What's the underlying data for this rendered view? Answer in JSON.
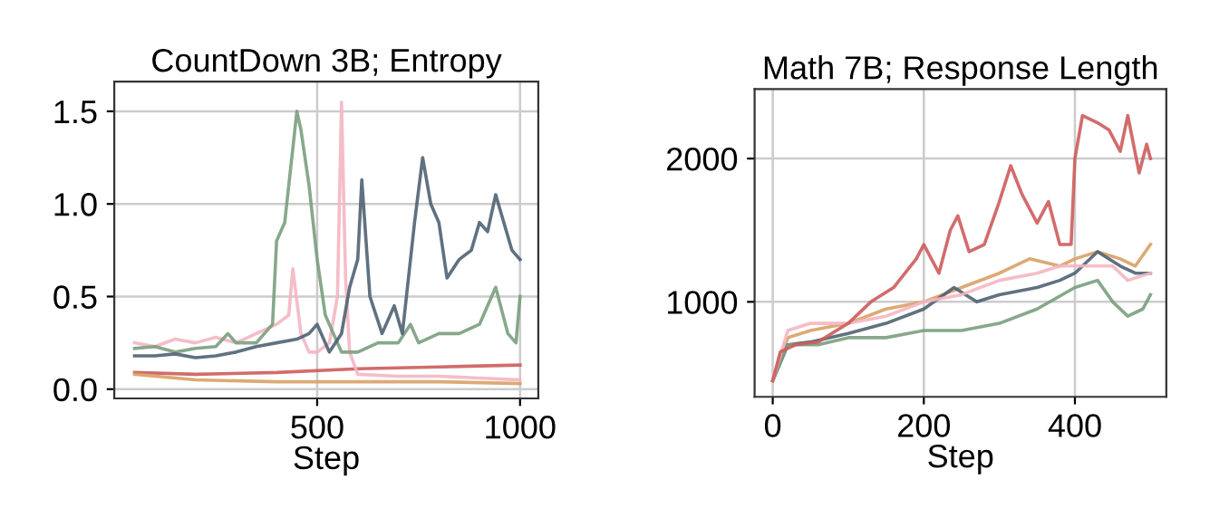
{
  "chart_data": [
    {
      "type": "line",
      "title": "CountDown 3B; Entropy",
      "xlabel": "Step",
      "xlim": [
        0,
        1045
      ],
      "xticks": [
        500,
        1000
      ],
      "ylim": [
        -0.05,
        1.66
      ],
      "yticks": [
        {
          "value": 0,
          "label": "0.0"
        },
        0.5,
        {
          "value": 1,
          "label": "1.0"
        },
        1.5
      ],
      "grid": true,
      "legend": false,
      "series": [
        {
          "color": "#cd5c5c",
          "x": [
            50,
            200,
            400,
            600,
            800,
            1000
          ],
          "values": [
            0.09,
            0.08,
            0.09,
            0.11,
            0.12,
            0.13
          ]
        },
        {
          "color": "#d9a066",
          "x": [
            50,
            200,
            400,
            600,
            800,
            1000
          ],
          "values": [
            0.08,
            0.05,
            0.04,
            0.04,
            0.04,
            0.03
          ]
        },
        {
          "color": "#f4b6c2",
          "x": [
            50,
            100,
            150,
            200,
            250,
            300,
            350,
            400,
            430,
            440,
            460,
            480,
            500,
            530,
            550,
            560,
            570,
            580,
            600,
            700,
            800,
            900,
            1000
          ],
          "values": [
            0.25,
            0.23,
            0.27,
            0.25,
            0.28,
            0.25,
            0.3,
            0.35,
            0.4,
            0.65,
            0.3,
            0.2,
            0.2,
            0.25,
            0.5,
            1.55,
            0.6,
            0.2,
            0.08,
            0.07,
            0.07,
            0.06,
            0.05
          ]
        },
        {
          "color": "#7a9e7e",
          "x": [
            50,
            100,
            150,
            200,
            250,
            280,
            300,
            350,
            390,
            400,
            420,
            440,
            450,
            460,
            480,
            500,
            520,
            540,
            560,
            580,
            600,
            650,
            700,
            730,
            750,
            800,
            850,
            900,
            940,
            970,
            990,
            1000
          ],
          "values": [
            0.22,
            0.23,
            0.2,
            0.22,
            0.23,
            0.3,
            0.25,
            0.25,
            0.35,
            0.8,
            0.9,
            1.3,
            1.5,
            1.4,
            1.1,
            0.7,
            0.4,
            0.3,
            0.2,
            0.2,
            0.2,
            0.25,
            0.25,
            0.35,
            0.25,
            0.3,
            0.3,
            0.35,
            0.55,
            0.3,
            0.25,
            0.5
          ]
        },
        {
          "color": "#4f6272",
          "x": [
            50,
            100,
            150,
            200,
            250,
            300,
            350,
            400,
            450,
            480,
            500,
            530,
            560,
            580,
            600,
            610,
            630,
            660,
            690,
            710,
            740,
            760,
            780,
            800,
            820,
            850,
            880,
            900,
            920,
            940,
            960,
            980,
            1000
          ],
          "values": [
            0.18,
            0.18,
            0.19,
            0.17,
            0.18,
            0.2,
            0.23,
            0.25,
            0.27,
            0.3,
            0.35,
            0.2,
            0.3,
            0.55,
            0.7,
            1.13,
            0.5,
            0.3,
            0.45,
            0.3,
            0.9,
            1.25,
            1.0,
            0.9,
            0.6,
            0.7,
            0.75,
            0.9,
            0.85,
            1.05,
            0.9,
            0.75,
            0.7
          ]
        }
      ]
    },
    {
      "type": "line",
      "title": "Math 7B; Response Length",
      "xlabel": "Step",
      "xlim": [
        -24,
        521
      ],
      "xticks": [
        0,
        200,
        400
      ],
      "ylim": [
        337,
        2485
      ],
      "yticks": [
        1000,
        2000
      ],
      "grid": true,
      "legend": false,
      "series": [
        {
          "color": "#d9a066",
          "x": [
            0,
            20,
            50,
            100,
            150,
            200,
            250,
            300,
            340,
            380,
            400,
            430,
            460,
            480,
            500
          ],
          "values": [
            450,
            750,
            800,
            850,
            950,
            1000,
            1100,
            1200,
            1300,
            1250,
            1300,
            1350,
            1300,
            1250,
            1400
          ]
        },
        {
          "color": "#4f6272",
          "x": [
            0,
            20,
            50,
            100,
            150,
            200,
            240,
            270,
            300,
            350,
            380,
            400,
            430,
            460,
            480,
            500
          ],
          "values": [
            450,
            700,
            720,
            780,
            850,
            950,
            1100,
            1000,
            1050,
            1100,
            1150,
            1200,
            1350,
            1250,
            1200,
            1200
          ]
        },
        {
          "color": "#7a9e7e",
          "x": [
            0,
            20,
            60,
            100,
            150,
            200,
            250,
            300,
            350,
            400,
            430,
            450,
            470,
            490,
            500
          ],
          "values": [
            450,
            700,
            700,
            750,
            750,
            800,
            800,
            850,
            950,
            1100,
            1150,
            1000,
            900,
            950,
            1050
          ]
        },
        {
          "color": "#f4b6c2",
          "x": [
            0,
            20,
            50,
            100,
            150,
            200,
            250,
            300,
            350,
            380,
            400,
            450,
            470,
            500
          ],
          "values": [
            450,
            800,
            850,
            850,
            900,
            1000,
            1050,
            1150,
            1200,
            1250,
            1250,
            1250,
            1150,
            1200
          ]
        },
        {
          "color": "#cd5c5c",
          "x": [
            0,
            10,
            30,
            60,
            100,
            130,
            160,
            190,
            200,
            220,
            235,
            245,
            260,
            280,
            300,
            315,
            330,
            350,
            365,
            380,
            395,
            400,
            410,
            430,
            445,
            460,
            470,
            485,
            495,
            500
          ],
          "values": [
            450,
            650,
            700,
            720,
            850,
            1000,
            1100,
            1300,
            1400,
            1200,
            1500,
            1600,
            1350,
            1400,
            1700,
            1950,
            1750,
            1550,
            1700,
            1400,
            1400,
            2000,
            2300,
            2250,
            2200,
            2050,
            2300,
            1900,
            2100,
            2000
          ]
        }
      ]
    }
  ]
}
